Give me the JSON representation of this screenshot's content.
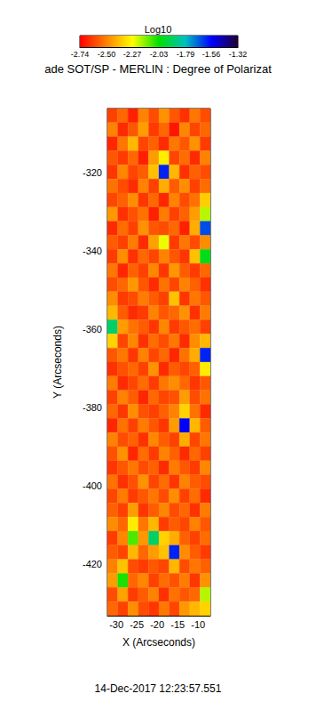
{
  "chart_data": {
    "type": "heatmap",
    "title": "ade SOT/SP - MERLIN : Degree of Polarizat",
    "subtitle": "14-Dec-2017 12:23:57.551",
    "x_label": "X (Arcseconds)",
    "y_label": "Y (Arcseconds)",
    "xlim": [
      -32.2,
      -7
    ],
    "ylim": [
      -433.2,
      -303.6
    ],
    "xticks": [
      -30,
      -25,
      -20,
      -15,
      -10
    ],
    "yticks": [
      -420,
      -400,
      -380,
      -360,
      -340,
      -320
    ],
    "cells": {
      "x": [
        -30.94,
        -28.42,
        -25.9,
        -23.38,
        -20.86,
        -18.34,
        -15.82,
        -13.3,
        -10.78,
        -8.26
      ],
      "y": [
        -305.4,
        -309.0,
        -312.6,
        -316.2,
        -319.8,
        -323.4,
        -327.0,
        -330.6,
        -334.2,
        -337.8,
        -341.4,
        -345.0,
        -348.6,
        -352.2,
        -355.8,
        -359.4,
        -363.0,
        -366.6,
        -370.2,
        -373.8,
        -377.4,
        -381.0,
        -384.6,
        -388.2,
        -391.8,
        -395.4,
        -399.0,
        -402.6,
        -406.2,
        -409.8,
        -413.4,
        -417.0,
        -420.6,
        -424.2,
        -427.8,
        -431.4
      ],
      "values": [
        [
          -2.62,
          -2.55,
          -2.68,
          -2.5,
          -2.6,
          -2.47,
          -2.58,
          -2.65,
          -2.52,
          -2.6
        ],
        [
          -2.5,
          -2.66,
          -2.58,
          -2.45,
          -2.63,
          -2.55,
          -2.7,
          -2.49,
          -2.61,
          -2.55
        ],
        [
          -2.67,
          -2.52,
          -2.4,
          -2.61,
          -2.56,
          -2.66,
          -2.52,
          -2.58,
          -2.47,
          -2.63
        ],
        [
          -2.58,
          -2.63,
          -2.55,
          -2.68,
          -2.45,
          -2.3,
          -2.61,
          -2.54,
          -2.66,
          -2.5
        ],
        [
          -2.64,
          -2.49,
          -2.61,
          -2.57,
          -2.38,
          -1.6,
          -2.4,
          -2.65,
          -2.56,
          -2.6
        ],
        [
          -2.53,
          -2.6,
          -2.66,
          -2.5,
          -2.62,
          -2.42,
          -2.57,
          -2.48,
          -2.62,
          -2.54
        ],
        [
          -2.61,
          -2.56,
          -2.48,
          -2.64,
          -2.55,
          -2.67,
          -2.5,
          -2.6,
          -2.53,
          -2.36
        ],
        [
          -2.46,
          -2.65,
          -2.59,
          -2.53,
          -2.68,
          -2.51,
          -2.62,
          -2.56,
          -2.45,
          -2.2
        ],
        [
          -2.66,
          -2.54,
          -2.62,
          -2.47,
          -2.58,
          -2.6,
          -2.55,
          -2.68,
          -2.42,
          -1.65
        ],
        [
          -2.57,
          -2.62,
          -2.51,
          -2.66,
          -2.44,
          -2.25,
          -2.63,
          -2.52,
          -2.6,
          -2.48
        ],
        [
          -2.63,
          -2.48,
          -2.65,
          -2.55,
          -2.61,
          -2.5,
          -2.58,
          -2.64,
          -2.38,
          -2.0
        ],
        [
          -2.52,
          -2.67,
          -2.56,
          -2.62,
          -2.49,
          -2.64,
          -2.46,
          -2.57,
          -2.63,
          -2.55
        ],
        [
          -2.6,
          -2.55,
          -2.46,
          -2.58,
          -2.66,
          -2.53,
          -2.61,
          -2.5,
          -2.56,
          -2.65
        ],
        [
          -2.48,
          -2.63,
          -2.6,
          -2.51,
          -2.57,
          -2.62,
          -2.38,
          -2.64,
          -2.52,
          -2.58
        ],
        [
          -2.4,
          -2.57,
          -2.66,
          -2.63,
          -2.5,
          -2.58,
          -2.55,
          -2.47,
          -2.65,
          -2.51
        ],
        [
          -1.9,
          -2.45,
          -2.53,
          -2.57,
          -2.64,
          -2.49,
          -2.63,
          -2.58,
          -2.54,
          -2.62
        ],
        [
          -2.35,
          -2.61,
          -2.49,
          -2.65,
          -2.54,
          -2.6,
          -2.52,
          -2.66,
          -2.48,
          -2.4
        ],
        [
          -2.58,
          -2.52,
          -2.64,
          -2.5,
          -2.61,
          -2.55,
          -2.67,
          -2.53,
          -2.42,
          -1.6
        ],
        [
          -2.65,
          -2.59,
          -2.55,
          -2.62,
          -2.47,
          -2.66,
          -2.57,
          -2.61,
          -2.56,
          -2.3
        ],
        [
          -2.51,
          -2.66,
          -2.61,
          -2.54,
          -2.63,
          -2.52,
          -2.48,
          -2.55,
          -2.64,
          -2.58
        ],
        [
          -2.62,
          -2.5,
          -2.57,
          -2.67,
          -2.55,
          -2.61,
          -2.59,
          -2.45,
          -2.6,
          -2.53
        ],
        [
          -2.55,
          -2.64,
          -2.48,
          -2.59,
          -2.62,
          -2.56,
          -2.5,
          -2.35,
          -2.53,
          -2.66
        ],
        [
          -2.67,
          -2.53,
          -2.62,
          -2.51,
          -2.58,
          -2.64,
          -2.45,
          -1.55,
          -2.4,
          -2.57
        ],
        [
          -2.5,
          -2.6,
          -2.56,
          -2.65,
          -2.49,
          -2.57,
          -2.62,
          -2.42,
          -2.61,
          -2.52
        ],
        [
          -2.59,
          -2.47,
          -2.67,
          -2.54,
          -2.63,
          -2.5,
          -2.56,
          -2.66,
          -2.55,
          -2.62
        ],
        [
          -2.64,
          -2.58,
          -2.52,
          -2.6,
          -2.56,
          -2.66,
          -2.51,
          -2.58,
          -2.63,
          -2.49
        ],
        [
          -2.53,
          -2.65,
          -2.59,
          -2.47,
          -2.61,
          -2.54,
          -2.64,
          -2.5,
          -2.57,
          -2.6
        ],
        [
          -2.61,
          -2.51,
          -2.63,
          -2.58,
          -2.52,
          -2.6,
          -2.48,
          -2.62,
          -2.54,
          -2.66
        ],
        [
          -2.56,
          -2.62,
          -2.45,
          -2.64,
          -2.57,
          -2.49,
          -2.6,
          -2.55,
          -2.65,
          -2.51
        ],
        [
          -2.48,
          -2.55,
          -2.3,
          -2.52,
          -2.4,
          -2.63,
          -2.57,
          -2.61,
          -2.5,
          -2.58
        ],
        [
          -2.63,
          -2.49,
          -2.1,
          -2.46,
          -1.9,
          -2.35,
          -2.42,
          -2.56,
          -2.62,
          -2.54
        ],
        [
          -2.57,
          -2.61,
          -2.4,
          -2.55,
          -2.45,
          -2.38,
          -1.6,
          -2.48,
          -2.57,
          -2.63
        ],
        [
          -2.5,
          -2.38,
          -2.6,
          -2.63,
          -2.58,
          -2.61,
          -2.4,
          -2.6,
          -2.52,
          -2.56
        ],
        [
          -2.45,
          -2.05,
          -2.55,
          -2.49,
          -2.62,
          -2.54,
          -2.59,
          -2.51,
          -2.64,
          -2.47
        ],
        [
          -2.6,
          -2.44,
          -2.63,
          -2.57,
          -2.5,
          -2.65,
          -2.53,
          -2.58,
          -2.55,
          -2.2
        ],
        [
          -2.55,
          -2.62,
          -2.48,
          -2.6,
          -2.64,
          -2.52,
          -2.61,
          -2.46,
          -2.4,
          -2.35
        ]
      ]
    },
    "colorbar": {
      "label": "Log10",
      "range": [
        -2.74,
        -1.32
      ],
      "ticks": [
        -2.74,
        {
          "value": -2.5,
          "label": "-2.50"
        },
        -2.27,
        -2.03,
        -1.79,
        -1.56,
        -1.32
      ],
      "colors": [
        "#ff0000",
        "#ff8000",
        "#ffff00",
        "#00e000",
        "#00c0c0",
        "#0000ff",
        "#200030"
      ]
    }
  }
}
